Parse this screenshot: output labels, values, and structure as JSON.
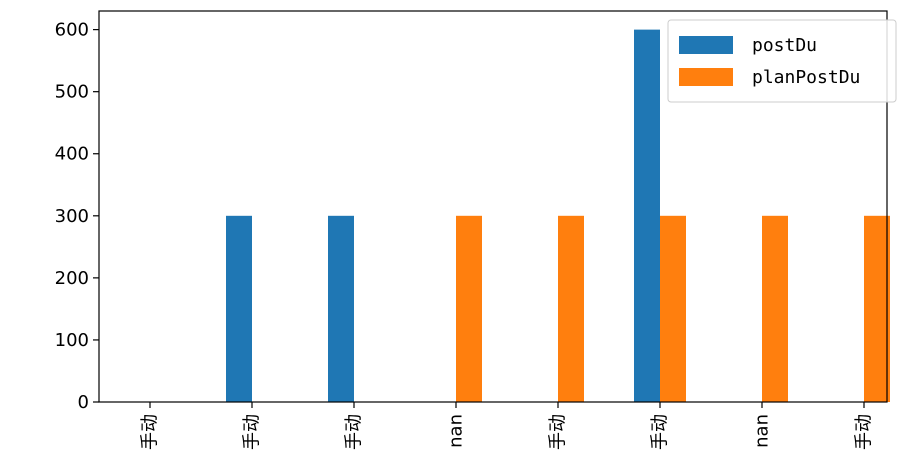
{
  "chart_data": {
    "type": "bar",
    "categories": [
      "手动",
      "手动",
      "手动",
      "nan",
      "手动",
      "手动",
      "nan",
      "手动"
    ],
    "series": [
      {
        "name": "postDu",
        "values": [
          0,
          300,
          300,
          0,
          0,
          600,
          0,
          0
        ],
        "color": "#1f77b4"
      },
      {
        "name": "planPostDu",
        "values": [
          0,
          0,
          0,
          300,
          300,
          300,
          300,
          300
        ],
        "color": "#ff7f0e"
      }
    ],
    "yticks": [
      0,
      100,
      200,
      300,
      400,
      500,
      600
    ],
    "ylim": [
      0,
      630
    ],
    "legend": "top-right",
    "grid": false
  }
}
